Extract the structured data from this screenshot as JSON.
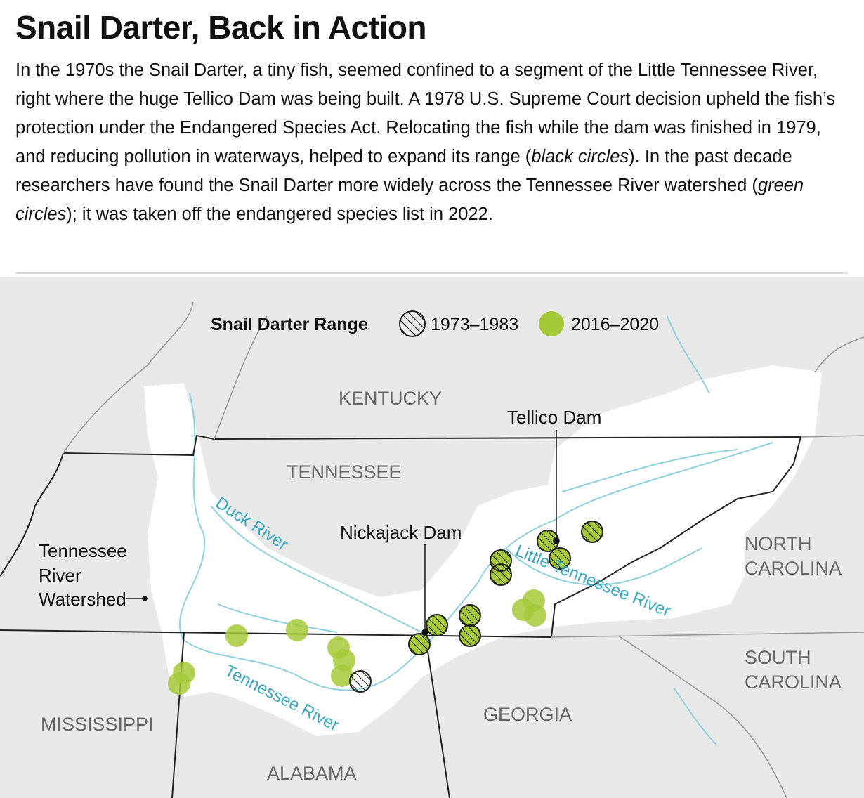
{
  "header": {
    "title": "Snail Darter, Back in Action",
    "description": [
      "In the 1970s the Snail Darter, a tiny fish, seemed confined to a segment of the Little Tennessee River, right where the huge Tellico Dam was being built. A 1978 U.S. Supreme Court decision upheld the fish’s protection under the Endangered Species Act. Relocating the fish while the dam was finished in 1979, and reducing pollution in waterways, helped to expand its range (",
      "black circles",
      "). In the past decade researchers have found the Snail Darter more widely across the Tennessee River watershed (",
      "green circles",
      "); it was taken off the endangered species list in 2022."
    ]
  },
  "legend": {
    "title": "Snail Darter Range",
    "items": [
      "1973–1983",
      "2016–2020"
    ]
  },
  "states": {
    "kentucky": "KENTUCKY",
    "tennessee": "TENNESSEE",
    "north_carolina": [
      "NORTH",
      "CAROLINA"
    ],
    "south_carolina": [
      "SOUTH",
      "CAROLINA"
    ],
    "georgia": "GEORGIA",
    "alabama": "ALABAMA",
    "mississippi": "MISSISSIPPI"
  },
  "labels": {
    "tellico_dam": "Tellico Dam",
    "nickajack_dam": "Nickajack Dam",
    "watershed": [
      "Tennessee",
      "River",
      "Watershed"
    ]
  },
  "rivers": {
    "duck": "Duck River",
    "little_tennessee": "Little Tennessee River",
    "tennessee": "Tennessee River"
  }
}
